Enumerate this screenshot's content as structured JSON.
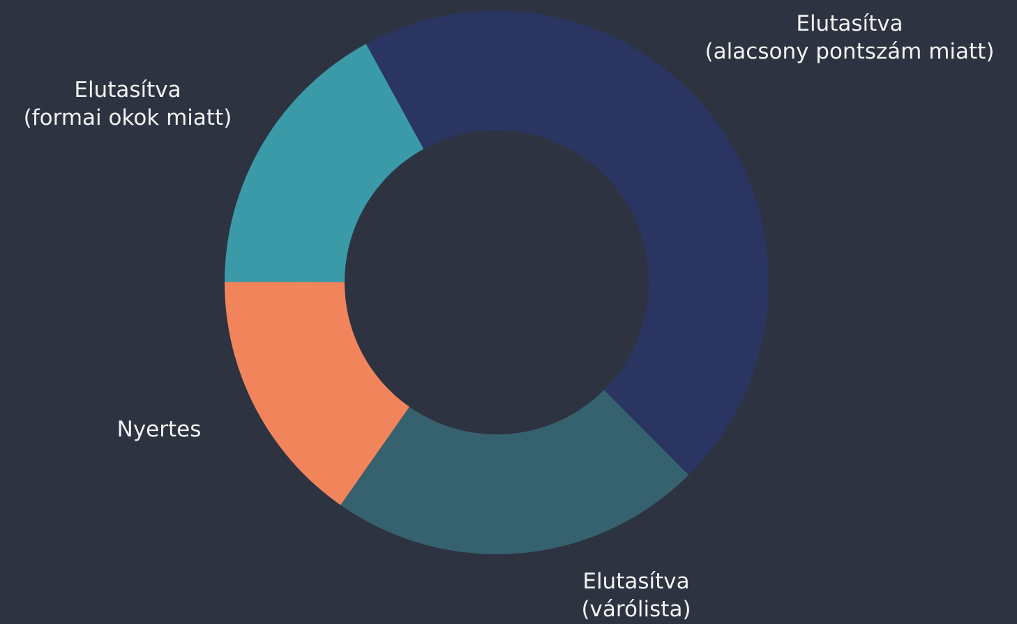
{
  "chart_data": {
    "type": "donut",
    "categories": [
      [
        "Elutasítva",
        "(alacsony pontszám miatt)"
      ],
      [
        "Elutasítva",
        "(várólista)"
      ],
      [
        "Nyertes"
      ],
      [
        "Elutasítva",
        "(formai okok miatt)"
      ]
    ],
    "values": [
      45.5,
      22.2,
      15.3,
      17.0
    ],
    "colors": [
      "#2b3561",
      "#35626e",
      "#f2845c",
      "#3a9aa8"
    ]
  }
}
